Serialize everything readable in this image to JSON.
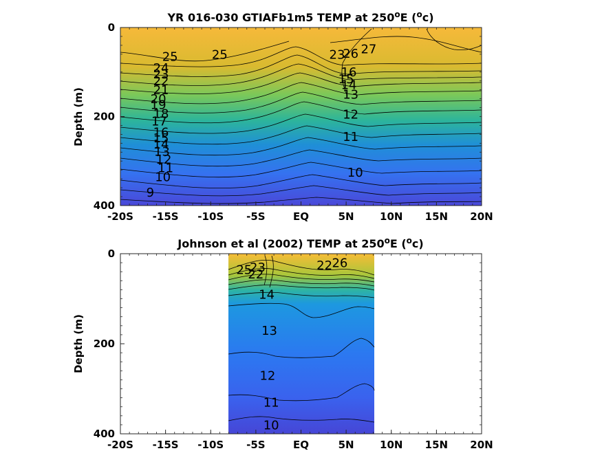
{
  "chart_data": [
    {
      "type": "contour",
      "title_prefix": "YR 016-030 GTIAFb1m5 TEMP at 250",
      "title_sup_o": "o",
      "title_mid": "E (",
      "title_sup_unit": "o",
      "title_suffix": "c)",
      "ylabel": "Depth (m)",
      "xlim": [
        -20,
        20
      ],
      "ylim": [
        0,
        400
      ],
      "y_reversed": true,
      "xticks": [
        -20,
        -15,
        -10,
        -5,
        0,
        5,
        10,
        15,
        20
      ],
      "xtick_labels": [
        "-20S",
        "-15S",
        "-10S",
        "-5S",
        "EQ",
        "5N",
        "10N",
        "15N",
        "20N"
      ],
      "yticks": [
        0,
        200,
        400
      ],
      "ytick_labels": [
        "0",
        "200",
        "400"
      ],
      "data_extent": [
        -20,
        20
      ],
      "isotherm_labels": [
        {
          "value": "25",
          "x": -14.5,
          "y": 75
        },
        {
          "value": "24",
          "x": -15.5,
          "y": 100
        },
        {
          "value": "23",
          "x": -15.5,
          "y": 114
        },
        {
          "value": "22",
          "x": -15.5,
          "y": 130
        },
        {
          "value": "21",
          "x": -15.5,
          "y": 150
        },
        {
          "value": "20",
          "x": -15.8,
          "y": 170
        },
        {
          "value": "19",
          "x": -15.8,
          "y": 183
        },
        {
          "value": "18",
          "x": -15.5,
          "y": 203
        },
        {
          "value": "17",
          "x": -15.7,
          "y": 220
        },
        {
          "value": "16",
          "x": -15.5,
          "y": 245
        },
        {
          "value": "15",
          "x": -15.5,
          "y": 258
        },
        {
          "value": "14",
          "x": -15.5,
          "y": 272
        },
        {
          "value": "13",
          "x": -15.4,
          "y": 288
        },
        {
          "value": "12",
          "x": -15.2,
          "y": 306
        },
        {
          "value": "11",
          "x": -15.0,
          "y": 325
        },
        {
          "value": "10",
          "x": -15.3,
          "y": 345
        },
        {
          "value": "9",
          "x": -16.7,
          "y": 380
        },
        {
          "value": "25",
          "x": -9.0,
          "y": 70
        },
        {
          "value": "23",
          "x": 4.0,
          "y": 70
        },
        {
          "value": "26",
          "x": 5.5,
          "y": 68
        },
        {
          "value": "27",
          "x": 7.5,
          "y": 58
        },
        {
          "value": "16",
          "x": 5.3,
          "y": 110
        },
        {
          "value": "15",
          "x": 5.0,
          "y": 125
        },
        {
          "value": "14",
          "x": 5.3,
          "y": 138
        },
        {
          "value": "13",
          "x": 5.5,
          "y": 160
        },
        {
          "value": "12",
          "x": 5.5,
          "y": 205
        },
        {
          "value": "11",
          "x": 5.5,
          "y": 255
        },
        {
          "value": "10",
          "x": 6.0,
          "y": 335
        }
      ]
    },
    {
      "type": "contour",
      "title_prefix": "Johnson et al (2002) TEMP at 250",
      "title_sup_o": "o",
      "title_mid": "E (",
      "title_sup_unit": "o",
      "title_suffix": "c)",
      "ylabel": "Depth (m)",
      "xlim": [
        -20,
        20
      ],
      "ylim": [
        0,
        400
      ],
      "y_reversed": true,
      "xticks": [
        -20,
        -15,
        -10,
        -5,
        0,
        5,
        10,
        15,
        20
      ],
      "xtick_labels": [
        "-20S",
        "-15S",
        "-10S",
        "-5S",
        "EQ",
        "5N",
        "10N",
        "15N",
        "20N"
      ],
      "yticks": [
        0,
        200,
        400
      ],
      "ytick_labels": [
        "0",
        "200",
        "400"
      ],
      "data_extent": [
        -8,
        8.2
      ],
      "isotherm_labels": [
        {
          "value": "25",
          "x": -6.3,
          "y": 45
        },
        {
          "value": "23",
          "x": -4.8,
          "y": 40
        },
        {
          "value": "22",
          "x": -5.0,
          "y": 55
        },
        {
          "value": "14",
          "x": -3.8,
          "y": 100
        },
        {
          "value": "13",
          "x": -3.5,
          "y": 180
        },
        {
          "value": "12",
          "x": -3.7,
          "y": 280
        },
        {
          "value": "11",
          "x": -3.3,
          "y": 340
        },
        {
          "value": "10",
          "x": -3.3,
          "y": 390
        },
        {
          "value": "22",
          "x": 2.6,
          "y": 35
        },
        {
          "value": "26",
          "x": 4.3,
          "y": 30
        }
      ]
    }
  ]
}
